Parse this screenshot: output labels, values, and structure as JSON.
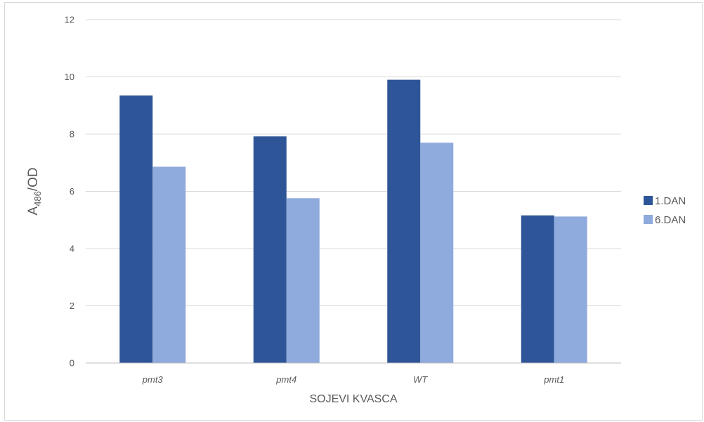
{
  "chart_data": {
    "type": "bar",
    "categories": [
      "pmt3",
      "pmt4",
      "WT",
      "pmt1"
    ],
    "series": [
      {
        "name": "1.DAN",
        "values": [
          9.35,
          7.92,
          9.9,
          5.16
        ],
        "color": "#2e5597"
      },
      {
        "name": "6.DAN",
        "values": [
          6.86,
          5.76,
          7.7,
          5.12
        ],
        "color": "#8faadc"
      }
    ],
    "title": "",
    "xlabel": "SOJEVI KVASCA",
    "ylabel": {
      "main": "A",
      "subscript": "486",
      "suffix": "/OD"
    },
    "ylim": [
      0,
      12
    ],
    "yticks": [
      0,
      2,
      4,
      6,
      8,
      10,
      12
    ],
    "grid": true,
    "legend_position": "right",
    "gridline_color": "#d9d9d9",
    "axis_line_color": "#bfbfbf",
    "text_color": "#595959"
  }
}
